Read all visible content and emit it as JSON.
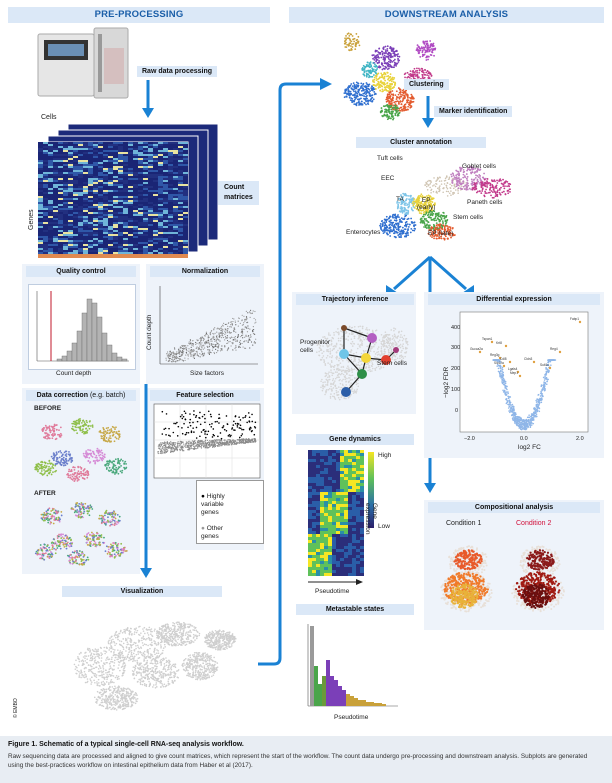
{
  "headers": {
    "pre": "PRE-PROCESSING",
    "down": "DOWNSTREAM ANALYSIS"
  },
  "pre": {
    "raw": "Raw data processing",
    "cells": "Cells",
    "genes": "Genes",
    "count_matrices": "Count\nmatrices",
    "qc": "Quality control",
    "qc_x": "Count depth",
    "norm": "Normalization",
    "norm_y": "Count depth",
    "norm_x": "Size factors",
    "datacorr_bold": "Data correction",
    "datacorr_rest": " (e.g. batch)",
    "before": "BEFORE",
    "after": "AFTER",
    "feature": "Feature selection",
    "legend_hv": "Highly\nvariable\ngenes",
    "legend_other": "Other\ngenes",
    "visual": "Visualization",
    "copyright": "© EMBO"
  },
  "down": {
    "clustering": "Clustering",
    "marker": "Marker identification",
    "annotation": "Cluster annotation",
    "tuft": "Tuft cells",
    "goblet": "Goblet cells",
    "eec": "EEC",
    "ta": "TA",
    "ep_early": "EP\n(early)",
    "paneth": "Paneth cells",
    "stem": "Stem cells",
    "enterocytes": "Enterocytes",
    "ep_late": "EP (late)",
    "trajectory": "Trajectory inference",
    "progenitor": "Progenitor\ncells",
    "stem2": "Stem cells",
    "diffexp": "Differential expression",
    "de_y": "−log2 FDR",
    "de_x": "log2 FC",
    "de_yticks": [
      "400",
      "300",
      "200",
      "100",
      "0"
    ],
    "de_xticks": [
      "−2.0",
      "0.0",
      "2.0"
    ],
    "de_genes": [
      "Fabp1",
      "Reg4",
      "Tspan1",
      "Krt8",
      "Gucca2a",
      "Reg3g",
      "Cdl8",
      "Slc12a",
      "Lgals4",
      "Mep1",
      "Sult1c",
      "Cldn3"
    ],
    "genedyn": "Gene dynamics",
    "high": "High",
    "low": "Low",
    "gene_expr": "Gene\nexpression",
    "pseudotime": "Pseudotime",
    "compositional": "Compositional analysis",
    "cond1": "Condition 1",
    "cond2": "Condition 2",
    "metastable": "Metastable states",
    "pseudotime2": "Pseudotime"
  },
  "caption": {
    "title": "Figure 1.   Schematic of a typical single-cell RNA-seq analysis workflow.",
    "text": "Raw sequencing data are processed and aligned to give count matrices, which represent the start of the workflow. The count data undergo pre-processing and downstream analysis. Subplots are generated using the best-practices workflow on intestinal epithelium data from Haber et al (2017)."
  },
  "colors": {
    "header_bg": "#dbe8f7",
    "header_text": "#1a5ea8",
    "arrow": "#1a82d4",
    "condition2": "#d1103a"
  }
}
